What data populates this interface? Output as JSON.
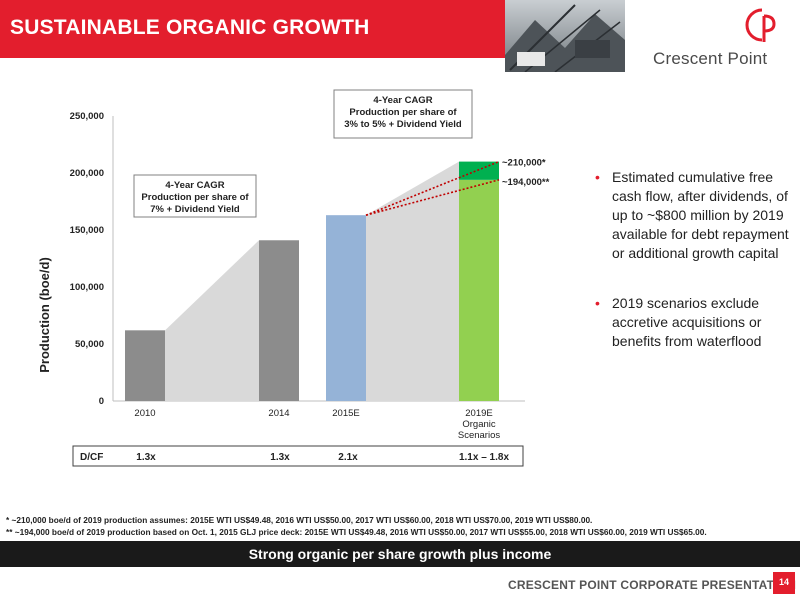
{
  "header": {
    "title": "SUSTAINABLE ORGANIC GROWTH"
  },
  "logo": {
    "name": "Crescent Point"
  },
  "chart_data": {
    "type": "bar",
    "ylabel": "Production (boe/d)",
    "ylim": [
      0,
      250000
    ],
    "yticks": [
      "0",
      "50,000",
      "100,000",
      "150,000",
      "200,000",
      "250,000"
    ],
    "categories": [
      "2010",
      "2014",
      "2015E",
      "2019E\nOrganic\nScenarios"
    ],
    "values": [
      62000,
      141000,
      163000,
      194000
    ],
    "stacked_top": {
      "category": "2019E\nOrganic\nScenarios",
      "base": 194000,
      "top": 210000
    },
    "colors": {
      "2010": "#8c8c8c",
      "2014": "#8c8c8c",
      "2015E": "#95b3d7",
      "2019E": "#92d050",
      "2019E_top": "#00b050",
      "band": "#d9d9d9",
      "dotted": "#c00000"
    },
    "annotations": {
      "cagr_left": [
        "4-Year CAGR",
        "Production per share of",
        "7% + Dividend Yield"
      ],
      "cagr_right": [
        "4-Year CAGR",
        "Production per share of",
        "3% to 5% + Dividend Yield"
      ],
      "high_label": "~210,000*",
      "low_label": "~194,000**"
    },
    "dcf": {
      "label": "D/CF",
      "values": [
        "1.3x",
        "1.3x",
        "2.1x",
        "1.1x – 1.8x"
      ]
    }
  },
  "bullets": [
    "Estimated cumulative free cash flow, after dividends, of up to ~$800 million by 2019 available for debt repayment or additional growth capital",
    "2019 scenarios exclude accretive acquisitions or benefits from waterflood"
  ],
  "footnotes": [
    "* ~210,000 boe/d of 2019 production assumes: 2015E WTI US$49.48, 2016 WTI US$50.00, 2017 WTI US$60.00, 2018 WTI US$70.00, 2019 WTI US$80.00.",
    "** ~194,000 boe/d of 2019 production based on Oct. 1, 2015 GLJ price deck: 2015E WTI US$49.48, 2016 WTI US$50.00, 2017 WTI US$55.00, 2018 WTI US$60.00, 2019 WTI US$65.00."
  ],
  "banner": {
    "text": "Strong organic per share growth plus income"
  },
  "footer": {
    "corp": "CRESCENT POINT CORPORATE PRESENTATION",
    "page": "14"
  }
}
